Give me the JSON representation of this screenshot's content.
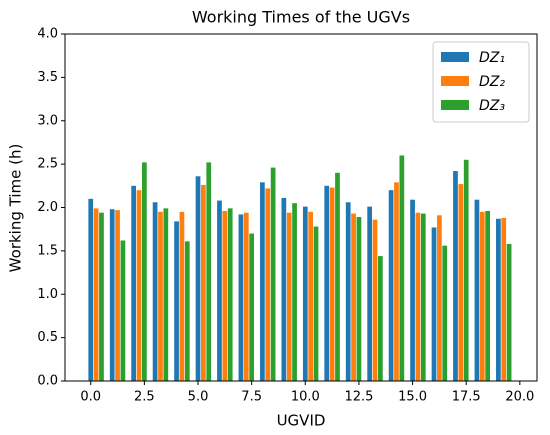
{
  "chart_data": {
    "type": "bar",
    "title": "Working Times of the UGVs",
    "x_label": "UGVID",
    "y_label": "Working Time (h)",
    "x": [
      0,
      1,
      2,
      3,
      4,
      5,
      6,
      7,
      8,
      9,
      10,
      11,
      12,
      13,
      14,
      15,
      16,
      17,
      18,
      19
    ],
    "series": [
      {
        "name": "DZ₁",
        "color": "#1f77b4",
        "values": [
          2.1,
          1.98,
          2.25,
          2.06,
          1.84,
          2.36,
          2.08,
          1.92,
          2.29,
          2.11,
          2.01,
          2.25,
          2.06,
          2.01,
          2.2,
          2.09,
          1.77,
          2.42,
          2.09,
          1.87
        ]
      },
      {
        "name": "DZ₂",
        "color": "#ff7f0e",
        "values": [
          1.99,
          1.97,
          2.2,
          1.95,
          1.95,
          2.26,
          1.96,
          1.94,
          2.22,
          1.94,
          1.95,
          2.23,
          1.93,
          1.86,
          2.29,
          1.94,
          1.91,
          2.27,
          1.95,
          1.88
        ]
      },
      {
        "name": "DZ₃",
        "color": "#2ca02c",
        "values": [
          1.94,
          1.62,
          2.52,
          1.99,
          1.61,
          2.52,
          1.99,
          1.7,
          2.46,
          2.05,
          1.78,
          2.4,
          1.89,
          1.44,
          2.6,
          1.93,
          1.56,
          2.55,
          1.96,
          1.58
        ]
      }
    ],
    "xlim": [
      -1.2,
      20.8
    ],
    "xticks": [
      {
        "value": 0,
        "label": "0.0"
      },
      {
        "value": 2.5,
        "label": "2.5"
      },
      {
        "value": 5,
        "label": "5.0"
      },
      {
        "value": 7.5,
        "label": "7.5"
      },
      {
        "value": 10,
        "label": "10.0"
      },
      {
        "value": 12.5,
        "label": "12.5"
      },
      {
        "value": 15,
        "label": "15.0"
      },
      {
        "value": 17.5,
        "label": "17.5"
      },
      {
        "value": 20,
        "label": "20.0"
      }
    ],
    "ylim": [
      0,
      4
    ],
    "yticks": [
      {
        "value": 0,
        "label": "0.0"
      },
      {
        "value": 0.5,
        "label": "0.5"
      },
      {
        "value": 1,
        "label": "1.0"
      },
      {
        "value": 1.5,
        "label": "1.5"
      },
      {
        "value": 2,
        "label": "2.0"
      },
      {
        "value": 2.5,
        "label": "2.5"
      },
      {
        "value": 3,
        "label": "3.0"
      },
      {
        "value": 3.5,
        "label": "3.5"
      },
      {
        "value": 4,
        "label": "4.0"
      }
    ],
    "legend": "upper right"
  }
}
